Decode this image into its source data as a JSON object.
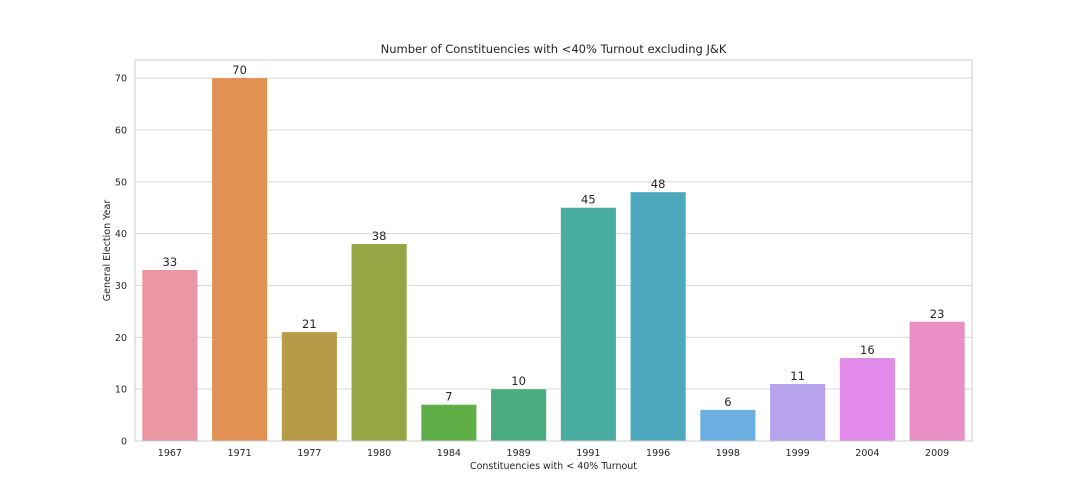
{
  "chart_data": {
    "type": "bar",
    "title": "Number of Constituencies with <40% Turnout excluding J&K",
    "xlabel": "Constituencies with < 40% Turnout",
    "ylabel": "General Election Year",
    "categories": [
      "1967",
      "1971",
      "1977",
      "1980",
      "1984",
      "1989",
      "1991",
      "1996",
      "1998",
      "1999",
      "2004",
      "2009"
    ],
    "values": [
      33,
      70,
      21,
      38,
      7,
      10,
      45,
      48,
      6,
      11,
      16,
      23
    ],
    "colors": [
      "#ea96a3",
      "#e19153",
      "#b89b49",
      "#97a544",
      "#5fae47",
      "#4cac82",
      "#49aca0",
      "#4da9be",
      "#6daee2",
      "#b6a3eb",
      "#e18ae9",
      "#e98fc6"
    ],
    "yticks": [
      0,
      10,
      20,
      30,
      40,
      50,
      60,
      70
    ],
    "ylim": [
      0,
      73.5
    ],
    "grid": true,
    "show_data_labels": true
  }
}
